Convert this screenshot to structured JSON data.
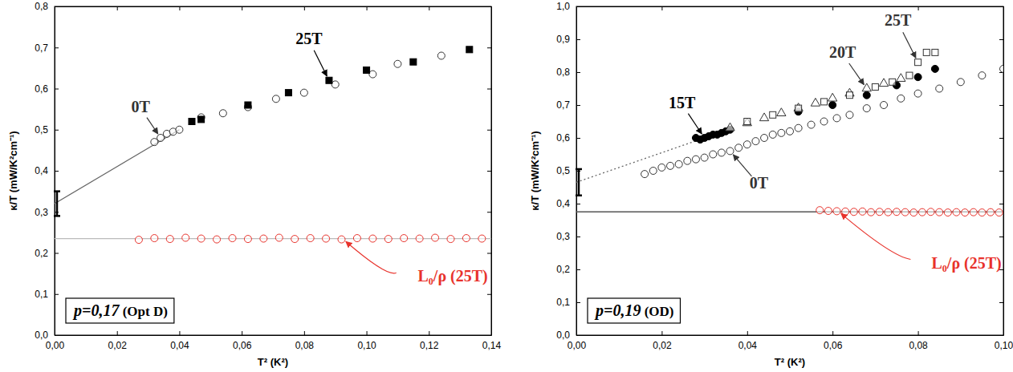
{
  "chart_data": [
    {
      "type": "scatter",
      "title": "p=0,17 (Opt D)",
      "x_label": "T² (K²)",
      "y_label": "κ/T (mW/K²cm⁻¹)",
      "xlim": [
        0,
        0.14
      ],
      "ylim": [
        0,
        0.8
      ],
      "xticks": [
        {
          "value": 0,
          "label": "0,00"
        },
        {
          "value": 0.02,
          "label": "0,02"
        },
        {
          "value": 0.04,
          "label": "0,04"
        },
        {
          "value": 0.06,
          "label": "0,06"
        },
        {
          "value": 0.08,
          "label": "0,08"
        },
        {
          "value": 0.1,
          "label": "0,10"
        },
        {
          "value": 0.12,
          "label": "0,12"
        },
        {
          "value": 0.14,
          "label": "0,14"
        }
      ],
      "yticks": [
        {
          "value": 0,
          "label": "0,0"
        },
        {
          "value": 0.1,
          "label": "0,1"
        },
        {
          "value": 0.2,
          "label": "0,2"
        },
        {
          "value": 0.3,
          "label": "0,3"
        },
        {
          "value": 0.4,
          "label": "0,4"
        },
        {
          "value": 0.5,
          "label": "0,5"
        },
        {
          "value": 0.6,
          "label": "0,6"
        },
        {
          "value": 0.7,
          "label": "0,7"
        },
        {
          "value": 0.8,
          "label": "0,8"
        }
      ],
      "series": [
        {
          "type": "line",
          "line_style": "solid",
          "color": "#666666",
          "x": [
            0,
            0.04
          ],
          "values": [
            0.32,
            0.5
          ]
        },
        {
          "type": "line",
          "line_style": "solid",
          "color": "#bbbbbb",
          "x": [
            0,
            0.14
          ],
          "values": [
            0.235,
            0.235
          ]
        },
        {
          "type": "errorbar",
          "color": "#000000",
          "x": [
            0
          ],
          "values": [
            0.32
          ],
          "errors": [
            0.03
          ]
        },
        {
          "name": "0T",
          "type": "scatter",
          "marker": "circle-open",
          "color": "#333333",
          "x": [
            0.032,
            0.034,
            0.036,
            0.038,
            0.04,
            0.047,
            0.054,
            0.062,
            0.071,
            0.08,
            0.09,
            0.102,
            0.11,
            0.124
          ],
          "values": [
            0.47,
            0.48,
            0.49,
            0.495,
            0.5,
            0.53,
            0.54,
            0.555,
            0.575,
            0.59,
            0.61,
            0.635,
            0.66,
            0.68
          ]
        },
        {
          "name": "25T",
          "type": "scatter",
          "marker": "square",
          "color": "#000000",
          "x": [
            0.044,
            0.047,
            0.062,
            0.075,
            0.088,
            0.1,
            0.115,
            0.133
          ],
          "values": [
            0.52,
            0.525,
            0.56,
            0.59,
            0.62,
            0.645,
            0.665,
            0.695
          ]
        },
        {
          "name": "L₀/ρ (25T)",
          "type": "scatter",
          "marker": "circle-open",
          "color": "#e8322b",
          "x": [
            0.027,
            0.032,
            0.037,
            0.042,
            0.047,
            0.052,
            0.057,
            0.062,
            0.067,
            0.072,
            0.077,
            0.082,
            0.087,
            0.092,
            0.097,
            0.102,
            0.107,
            0.112,
            0.117,
            0.122,
            0.127,
            0.132,
            0.137
          ],
          "values": [
            0.232,
            0.236,
            0.234,
            0.237,
            0.235,
            0.233,
            0.236,
            0.234,
            0.235,
            0.237,
            0.234,
            0.236,
            0.235,
            0.233,
            0.236,
            0.235,
            0.234,
            0.236,
            0.235,
            0.237,
            0.234,
            0.236,
            0.235
          ]
        }
      ]
    },
    {
      "type": "scatter",
      "title": "p=0,19 (OD)",
      "x_label": "T² (K²)",
      "y_label": "κ/T (mW/K²cm⁻¹)",
      "xlim": [
        0,
        0.1
      ],
      "ylim": [
        0,
        1.0
      ],
      "xticks": [
        {
          "value": 0,
          "label": "0,00"
        },
        {
          "value": 0.02,
          "label": "0,02"
        },
        {
          "value": 0.04,
          "label": "0,04"
        },
        {
          "value": 0.06,
          "label": "0,06"
        },
        {
          "value": 0.08,
          "label": "0,08"
        },
        {
          "value": 0.1,
          "label": "0,10"
        }
      ],
      "yticks": [
        {
          "value": 0,
          "label": "0,0"
        },
        {
          "value": 0.1,
          "label": "0,1"
        },
        {
          "value": 0.2,
          "label": "0,2"
        },
        {
          "value": 0.3,
          "label": "0,3"
        },
        {
          "value": 0.4,
          "label": "0,4"
        },
        {
          "value": 0.5,
          "label": "0,5"
        },
        {
          "value": 0.6,
          "label": "0,6"
        },
        {
          "value": 0.7,
          "label": "0,7"
        },
        {
          "value": 0.8,
          "label": "0,8"
        },
        {
          "value": 0.9,
          "label": "0,9"
        },
        {
          "value": 1.0,
          "label": "1,0"
        }
      ],
      "series": [
        {
          "type": "line",
          "line_style": "dotted",
          "color": "#666666",
          "x": [
            0,
            0.03
          ],
          "values": [
            0.465,
            0.6
          ]
        },
        {
          "type": "line",
          "line_style": "solid",
          "color": "#555555",
          "x": [
            0,
            0.1
          ],
          "values": [
            0.375,
            0.375
          ]
        },
        {
          "type": "errorbar",
          "color": "#000000",
          "x": [
            0
          ],
          "values": [
            0.465
          ],
          "errors": [
            0.04
          ]
        },
        {
          "name": "0T",
          "type": "scatter",
          "marker": "circle-open",
          "color": "#333333",
          "x": [
            0.016,
            0.018,
            0.02,
            0.022,
            0.024,
            0.026,
            0.028,
            0.03,
            0.032,
            0.034,
            0.036,
            0.038,
            0.04,
            0.042,
            0.044,
            0.046,
            0.048,
            0.05,
            0.052,
            0.055,
            0.058,
            0.061,
            0.064,
            0.068,
            0.072,
            0.076,
            0.08,
            0.085,
            0.09,
            0.095,
            0.1
          ],
          "values": [
            0.49,
            0.5,
            0.51,
            0.515,
            0.52,
            0.53,
            0.535,
            0.54,
            0.55,
            0.555,
            0.56,
            0.57,
            0.58,
            0.59,
            0.6,
            0.61,
            0.615,
            0.62,
            0.63,
            0.64,
            0.65,
            0.66,
            0.67,
            0.69,
            0.7,
            0.72,
            0.735,
            0.75,
            0.77,
            0.79,
            0.81
          ]
        },
        {
          "name": "15T",
          "type": "scatter",
          "marker": "circle",
          "color": "#000000",
          "x": [
            0.028,
            0.029,
            0.03,
            0.031,
            0.032,
            0.033,
            0.034,
            0.035,
            0.036,
            0.052,
            0.06,
            0.068,
            0.075,
            0.08,
            0.084
          ],
          "values": [
            0.6,
            0.595,
            0.6,
            0.605,
            0.61,
            0.61,
            0.615,
            0.62,
            0.625,
            0.68,
            0.7,
            0.73,
            0.76,
            0.785,
            0.81
          ]
        },
        {
          "name": "20T",
          "type": "scatter",
          "marker": "triangle-open",
          "color": "#333333",
          "x": [
            0.036,
            0.04,
            0.044,
            0.048,
            0.052,
            0.056,
            0.06,
            0.064,
            0.068,
            0.072,
            0.076
          ],
          "values": [
            0.63,
            0.645,
            0.66,
            0.675,
            0.69,
            0.705,
            0.72,
            0.735,
            0.75,
            0.765,
            0.78
          ]
        },
        {
          "name": "25T",
          "type": "scatter",
          "marker": "square-open",
          "color": "#333333",
          "x": [
            0.04,
            0.046,
            0.052,
            0.058,
            0.064,
            0.07,
            0.074,
            0.078,
            0.08,
            0.082,
            0.084
          ],
          "values": [
            0.65,
            0.67,
            0.69,
            0.71,
            0.73,
            0.755,
            0.77,
            0.79,
            0.83,
            0.86,
            0.86
          ]
        },
        {
          "name": "L₀/ρ (25T)",
          "type": "scatter",
          "marker": "circle-open",
          "color": "#e8322b",
          "x": [
            0.057,
            0.059,
            0.061,
            0.063,
            0.065,
            0.067,
            0.069,
            0.071,
            0.073,
            0.075,
            0.077,
            0.079,
            0.081,
            0.083,
            0.085,
            0.087,
            0.089,
            0.091,
            0.093,
            0.095,
            0.097,
            0.099
          ],
          "values": [
            0.38,
            0.378,
            0.377,
            0.376,
            0.375,
            0.376,
            0.374,
            0.375,
            0.374,
            0.375,
            0.374,
            0.373,
            0.374,
            0.375,
            0.374,
            0.373,
            0.374,
            0.373,
            0.374,
            0.373,
            0.374,
            0.373
          ]
        }
      ]
    }
  ]
}
